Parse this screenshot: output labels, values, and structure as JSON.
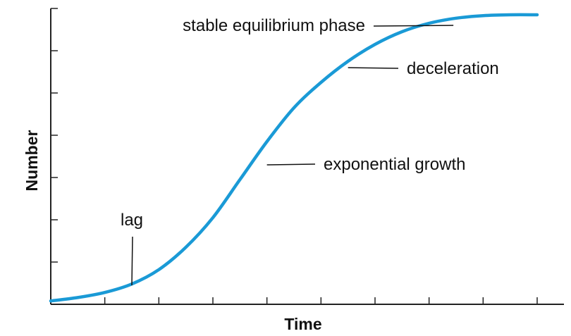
{
  "chart_data": {
    "type": "line",
    "title": "",
    "xlabel": "Time",
    "ylabel": "Number",
    "grid": false,
    "legend": "none",
    "x_ticks": 9,
    "y_ticks": 7,
    "xlim": [
      0,
      9
    ],
    "ylim": [
      0,
      7
    ],
    "series": [
      {
        "color": "#1a9ad6",
        "x": [
          0,
          0.5,
          1,
          1.5,
          2,
          2.5,
          3,
          3.5,
          4,
          4.5,
          5,
          5.5,
          6,
          6.5,
          7,
          7.5,
          8,
          8.5,
          9
        ],
        "values": [
          0.08,
          0.16,
          0.28,
          0.48,
          0.82,
          1.35,
          2.05,
          2.95,
          3.85,
          4.65,
          5.25,
          5.75,
          6.15,
          6.45,
          6.65,
          6.77,
          6.83,
          6.85,
          6.85
        ]
      }
    ],
    "annotations": [
      {
        "text": "stable equilibrium phase",
        "x": 7.45,
        "y": 6.6
      },
      {
        "text": "deceleration",
        "x": 5.5,
        "y": 5.6
      },
      {
        "text": "exponential growth",
        "x": 4.0,
        "y": 3.3
      },
      {
        "text": "lag",
        "x": 1.5,
        "y": 0.45
      }
    ]
  }
}
